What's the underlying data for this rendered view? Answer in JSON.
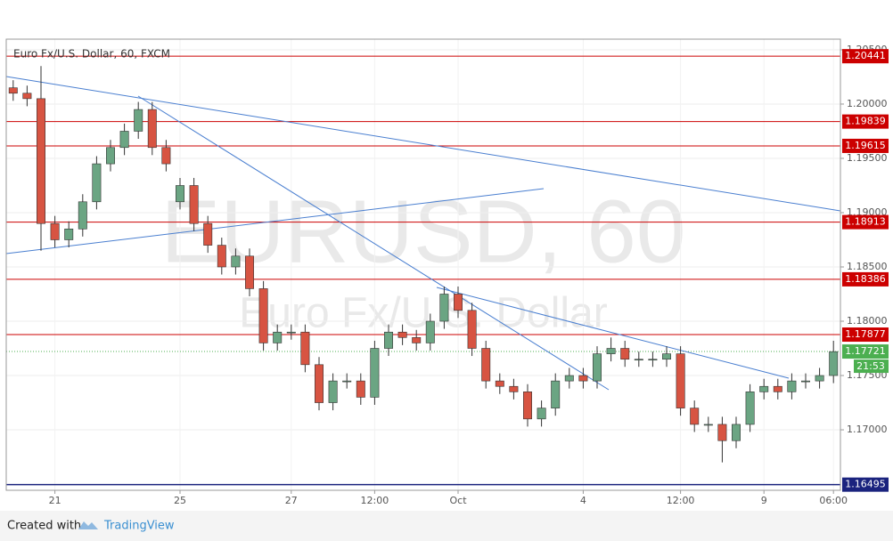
{
  "chart_data": {
    "type": "candlestick",
    "title": "Euro Fx/U.S. Dollar, 60, FXCM",
    "watermark": "EURUSD, 60",
    "watermark_subtitle": "Euro Fx/U.S. Dollar",
    "categories": [
      null,
      null,
      null,
      "21",
      null,
      null,
      null,
      null,
      null,
      null,
      null,
      null,
      "25",
      null,
      null,
      null,
      null,
      null,
      null,
      null,
      "27",
      null,
      null,
      null,
      null,
      null,
      "12:00",
      null,
      null,
      null,
      null,
      null,
      "Oct",
      null,
      null,
      null,
      null,
      null,
      null,
      null,
      null,
      "4",
      null,
      null,
      null,
      null,
      null,
      null,
      "12:00",
      null,
      null,
      null,
      null,
      null,
      "9",
      null,
      null,
      null,
      null,
      "06:00"
    ],
    "open": [
      1.2015,
      1.201,
      1.2005,
      1.189,
      1.1875,
      1.1885,
      1.191,
      1.1945,
      1.196,
      1.1975,
      1.1995,
      1.196,
      1.191,
      1.1925,
      1.189,
      1.187,
      1.185,
      1.186,
      1.183,
      1.178,
      1.179,
      1.179,
      1.176,
      1.1725,
      1.1745,
      1.1745,
      1.173,
      1.1775,
      1.179,
      1.1785,
      1.178,
      1.18,
      1.1825,
      1.181,
      1.1775,
      1.1745,
      1.174,
      1.1735,
      1.171,
      1.172,
      1.1745,
      1.175,
      1.1745,
      1.177,
      1.1775,
      1.1765,
      1.1765,
      1.1765,
      1.177,
      1.172,
      1.1705,
      1.1705,
      1.169,
      1.1705,
      1.1735,
      1.174,
      1.1735,
      1.1745,
      1.1745,
      1.175
    ],
    "high": [
      1.2022,
      1.2017,
      1.2035,
      1.1897,
      1.1892,
      1.1917,
      1.1952,
      1.1967,
      1.1982,
      1.2002,
      1.2002,
      1.1967,
      1.1932,
      1.1932,
      1.1897,
      1.1877,
      1.1867,
      1.1867,
      1.1837,
      1.1797,
      1.1797,
      1.1797,
      1.1767,
      1.1752,
      1.1752,
      1.1752,
      1.1782,
      1.1797,
      1.1797,
      1.1792,
      1.1807,
      1.1832,
      1.1832,
      1.1817,
      1.1782,
      1.1752,
      1.1747,
      1.1742,
      1.1727,
      1.1752,
      1.1757,
      1.1757,
      1.1777,
      1.1785,
      1.1782,
      1.1772,
      1.1772,
      1.1777,
      1.1777,
      1.1727,
      1.1712,
      1.1712,
      1.1712,
      1.1742,
      1.1747,
      1.1747,
      1.1752,
      1.1752,
      1.1757,
      1.1782
    ],
    "low": [
      1.2003,
      1.1998,
      1.1865,
      1.1868,
      1.1868,
      1.1878,
      1.1903,
      1.1938,
      1.1953,
      1.1968,
      1.1953,
      1.1938,
      1.1903,
      1.1883,
      1.1863,
      1.1843,
      1.1843,
      1.1823,
      1.1773,
      1.1773,
      1.1783,
      1.1753,
      1.1718,
      1.1718,
      1.1738,
      1.1723,
      1.1723,
      1.1768,
      1.1778,
      1.1773,
      1.1773,
      1.1793,
      1.1803,
      1.1768,
      1.1738,
      1.1733,
      1.1728,
      1.1703,
      1.1703,
      1.1713,
      1.1738,
      1.1738,
      1.1738,
      1.1763,
      1.1758,
      1.1758,
      1.1758,
      1.1758,
      1.1713,
      1.1698,
      1.1698,
      1.167,
      1.1683,
      1.1698,
      1.1728,
      1.1728,
      1.1728,
      1.1738,
      1.1738,
      1.1743
    ],
    "close": [
      1.201,
      1.2005,
      1.189,
      1.1875,
      1.1885,
      1.191,
      1.1945,
      1.196,
      1.1975,
      1.1995,
      1.196,
      1.1945,
      1.1925,
      1.189,
      1.187,
      1.185,
      1.186,
      1.183,
      1.178,
      1.179,
      1.179,
      1.176,
      1.1725,
      1.1745,
      1.1745,
      1.173,
      1.1775,
      1.179,
      1.1785,
      1.178,
      1.18,
      1.1825,
      1.181,
      1.1775,
      1.1745,
      1.174,
      1.1735,
      1.171,
      1.172,
      1.1745,
      1.175,
      1.1745,
      1.177,
      1.1775,
      1.1765,
      1.1765,
      1.1765,
      1.177,
      1.172,
      1.1705,
      1.1705,
      1.169,
      1.1705,
      1.1735,
      1.174,
      1.1735,
      1.1745,
      1.1745,
      1.175,
      1.1772
    ],
    "up_color": "#6ba583",
    "down_color": "#d75442",
    "ylim": [
      1.16443,
      1.20598
    ],
    "yticks": [
      {
        "value": 1.17,
        "label": "1.17000"
      },
      {
        "value": 1.175,
        "label": "1.17500"
      },
      {
        "value": 1.18,
        "label": "1.18000"
      },
      {
        "value": 1.185,
        "label": "1.18500"
      },
      {
        "value": 1.19,
        "label": "1.19000"
      },
      {
        "value": 1.195,
        "label": "1.19500"
      },
      {
        "value": 1.2,
        "label": "1.20000"
      },
      {
        "value": 1.205,
        "label": "1.20500"
      }
    ],
    "grid": true,
    "levels": [
      1.20441,
      1.19839,
      1.19615,
      1.18913,
      1.18386,
      1.17877
    ],
    "level_color": "#cc0000",
    "support_level": 1.16495,
    "support_color": "#1a237e",
    "last_price": 1.17721,
    "last_price_color": "#4caf50",
    "countdown": "21:53"
  },
  "footer": {
    "prefix": "Created with",
    "brand": "TradingView"
  }
}
